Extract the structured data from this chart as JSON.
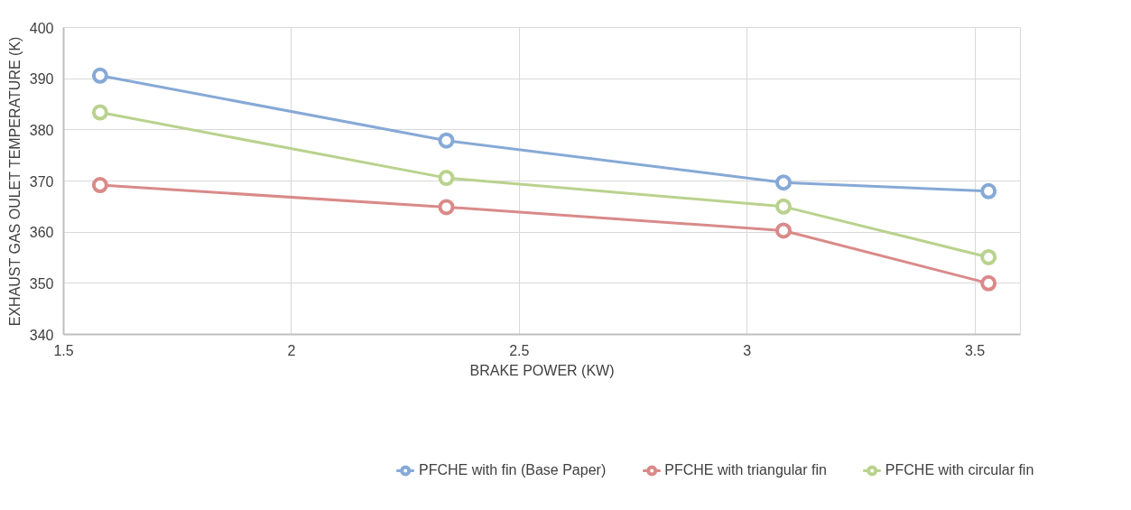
{
  "chart_data": {
    "type": "line",
    "xlabel": "BRAKE POWER (KW)",
    "ylabel": "EXHAUST GAS OULET TEMPERATURE (K)",
    "x": [
      1.58,
      2.34,
      3.08,
      3.53
    ],
    "series": [
      {
        "name": "PFCHE with fin (Base Paper)",
        "color": "#86a9d6",
        "values": [
          390.6,
          377.9,
          369.7,
          368.0
        ]
      },
      {
        "name": "PFCHE with triangular fin",
        "color": "#d98a89",
        "values": [
          369.2,
          364.9,
          360.3,
          350.0
        ]
      },
      {
        "name": "PFCHE with circular fin",
        "color": "#b9d28e",
        "values": [
          383.4,
          370.6,
          365.0,
          355.1
        ]
      }
    ],
    "xlim": [
      1.5,
      3.6
    ],
    "xticks": [
      1.5,
      2,
      2.5,
      3,
      3.5
    ],
    "ylim": [
      340,
      400
    ],
    "yticks": [
      340,
      350,
      360,
      370,
      380,
      390,
      400
    ],
    "grid": true,
    "legend": "bottom",
    "marker": "circle",
    "line_style": "solid"
  }
}
